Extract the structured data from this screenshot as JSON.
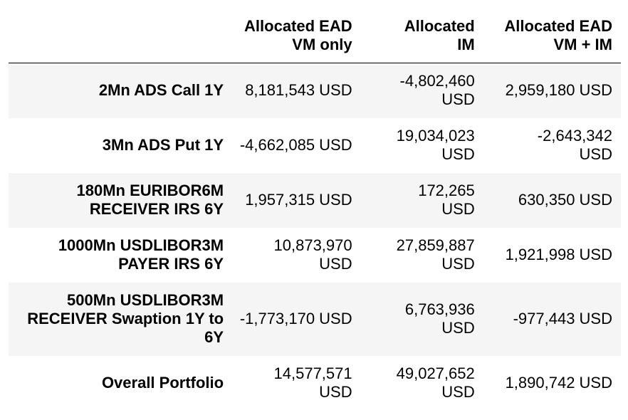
{
  "table": {
    "columns": [
      {
        "lines": [
          "Allocated EAD",
          "VM only"
        ]
      },
      {
        "lines": [
          "Allocated",
          "IM"
        ]
      },
      {
        "lines": [
          "Allocated EAD",
          "VM + IM"
        ]
      }
    ],
    "rows": [
      {
        "label": [
          "2Mn ADS Call 1Y"
        ],
        "cells": [
          [
            "8,181,543 USD"
          ],
          [
            "-4,802,460",
            "USD"
          ],
          [
            "2,959,180 USD"
          ]
        ]
      },
      {
        "label": [
          "3Mn ADS Put 1Y"
        ],
        "cells": [
          [
            "-4,662,085 USD"
          ],
          [
            "19,034,023",
            "USD"
          ],
          [
            "-2,643,342",
            "USD"
          ]
        ]
      },
      {
        "label": [
          "180Mn EURIBOR6M",
          "RECEIVER IRS 6Y"
        ],
        "cells": [
          [
            "1,957,315 USD"
          ],
          [
            "172,265",
            "USD"
          ],
          [
            "630,350 USD"
          ]
        ]
      },
      {
        "label": [
          "1000Mn USDLIBOR3M",
          "PAYER IRS 6Y"
        ],
        "cells": [
          [
            "10,873,970",
            "USD"
          ],
          [
            "27,859,887",
            "USD"
          ],
          [
            "1,921,998 USD"
          ]
        ]
      },
      {
        "label": [
          "500Mn USDLIBOR3M",
          "RECEIVER Swaption 1Y to",
          "6Y"
        ],
        "cells": [
          [
            "-1,773,170 USD"
          ],
          [
            "6,763,936",
            "USD"
          ],
          [
            "-977,443 USD"
          ]
        ]
      },
      {
        "label": [
          "Overall Portfolio"
        ],
        "cells": [
          [
            "14,577,571",
            "USD"
          ],
          [
            "49,027,652",
            "USD"
          ],
          [
            "1,890,742 USD"
          ]
        ]
      }
    ]
  }
}
